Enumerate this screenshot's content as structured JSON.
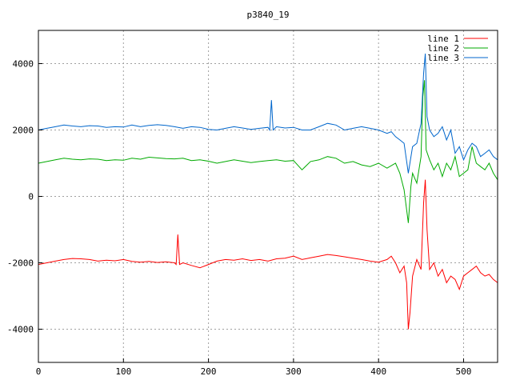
{
  "chart_data": {
    "type": "line",
    "title": "p3840_19",
    "xlabel": "",
    "ylabel": "",
    "xlim": [
      0,
      540
    ],
    "ylim": [
      -5000,
      5000
    ],
    "xticks": [
      0,
      100,
      200,
      300,
      400,
      500
    ],
    "yticks": [
      -4000,
      -2000,
      0,
      2000,
      4000
    ],
    "grid": true,
    "legend_position": "top-right",
    "series": [
      {
        "name": "line 1",
        "color": "#ff0000",
        "points": [
          [
            0,
            -2050
          ],
          [
            10,
            -2000
          ],
          [
            20,
            -1950
          ],
          [
            30,
            -1900
          ],
          [
            40,
            -1870
          ],
          [
            50,
            -1880
          ],
          [
            60,
            -1900
          ],
          [
            70,
            -1950
          ],
          [
            80,
            -1920
          ],
          [
            90,
            -1940
          ],
          [
            100,
            -1900
          ],
          [
            110,
            -1960
          ],
          [
            120,
            -1980
          ],
          [
            130,
            -1960
          ],
          [
            140,
            -1990
          ],
          [
            150,
            -1970
          ],
          [
            160,
            -2000
          ],
          [
            162,
            -2050
          ],
          [
            164,
            -1150
          ],
          [
            166,
            -2050
          ],
          [
            170,
            -2000
          ],
          [
            180,
            -2080
          ],
          [
            190,
            -2150
          ],
          [
            200,
            -2050
          ],
          [
            210,
            -1950
          ],
          [
            220,
            -1900
          ],
          [
            230,
            -1920
          ],
          [
            240,
            -1880
          ],
          [
            250,
            -1930
          ],
          [
            260,
            -1900
          ],
          [
            270,
            -1950
          ],
          [
            280,
            -1880
          ],
          [
            290,
            -1860
          ],
          [
            300,
            -1800
          ],
          [
            310,
            -1900
          ],
          [
            320,
            -1850
          ],
          [
            330,
            -1800
          ],
          [
            340,
            -1750
          ],
          [
            350,
            -1780
          ],
          [
            360,
            -1820
          ],
          [
            370,
            -1860
          ],
          [
            380,
            -1900
          ],
          [
            390,
            -1950
          ],
          [
            400,
            -1980
          ],
          [
            410,
            -1900
          ],
          [
            415,
            -1800
          ],
          [
            420,
            -2000
          ],
          [
            425,
            -2300
          ],
          [
            430,
            -2100
          ],
          [
            433,
            -2600
          ],
          [
            435,
            -4000
          ],
          [
            437,
            -3500
          ],
          [
            440,
            -2400
          ],
          [
            445,
            -1900
          ],
          [
            450,
            -2200
          ],
          [
            453,
            -200
          ],
          [
            455,
            500
          ],
          [
            457,
            -1000
          ],
          [
            460,
            -2200
          ],
          [
            465,
            -2000
          ],
          [
            470,
            -2400
          ],
          [
            475,
            -2200
          ],
          [
            480,
            -2600
          ],
          [
            485,
            -2400
          ],
          [
            490,
            -2500
          ],
          [
            495,
            -2800
          ],
          [
            500,
            -2400
          ],
          [
            505,
            -2300
          ],
          [
            510,
            -2200
          ],
          [
            515,
            -2100
          ],
          [
            520,
            -2300
          ],
          [
            525,
            -2400
          ],
          [
            530,
            -2350
          ],
          [
            535,
            -2500
          ],
          [
            540,
            -2600
          ]
        ]
      },
      {
        "name": "line 2",
        "color": "#00aa00",
        "points": [
          [
            0,
            1000
          ],
          [
            10,
            1050
          ],
          [
            20,
            1100
          ],
          [
            30,
            1150
          ],
          [
            40,
            1120
          ],
          [
            50,
            1100
          ],
          [
            60,
            1130
          ],
          [
            70,
            1120
          ],
          [
            80,
            1080
          ],
          [
            90,
            1100
          ],
          [
            100,
            1090
          ],
          [
            110,
            1150
          ],
          [
            120,
            1120
          ],
          [
            130,
            1180
          ],
          [
            140,
            1160
          ],
          [
            150,
            1140
          ],
          [
            160,
            1130
          ],
          [
            170,
            1150
          ],
          [
            180,
            1080
          ],
          [
            190,
            1100
          ],
          [
            200,
            1060
          ],
          [
            210,
            1000
          ],
          [
            220,
            1050
          ],
          [
            230,
            1100
          ],
          [
            240,
            1060
          ],
          [
            250,
            1020
          ],
          [
            260,
            1050
          ],
          [
            270,
            1080
          ],
          [
            280,
            1100
          ],
          [
            290,
            1060
          ],
          [
            300,
            1080
          ],
          [
            310,
            800
          ],
          [
            320,
            1050
          ],
          [
            330,
            1100
          ],
          [
            340,
            1200
          ],
          [
            350,
            1150
          ],
          [
            360,
            1000
          ],
          [
            370,
            1050
          ],
          [
            380,
            950
          ],
          [
            390,
            900
          ],
          [
            400,
            1000
          ],
          [
            410,
            850
          ],
          [
            420,
            1000
          ],
          [
            425,
            700
          ],
          [
            430,
            200
          ],
          [
            435,
            -800
          ],
          [
            438,
            300
          ],
          [
            440,
            700
          ],
          [
            445,
            400
          ],
          [
            450,
            1200
          ],
          [
            452,
            3000
          ],
          [
            454,
            3500
          ],
          [
            456,
            1400
          ],
          [
            460,
            1100
          ],
          [
            465,
            800
          ],
          [
            470,
            1000
          ],
          [
            475,
            600
          ],
          [
            480,
            1000
          ],
          [
            485,
            800
          ],
          [
            490,
            1200
          ],
          [
            495,
            600
          ],
          [
            500,
            700
          ],
          [
            505,
            800
          ],
          [
            510,
            1500
          ],
          [
            515,
            1000
          ],
          [
            520,
            900
          ],
          [
            525,
            800
          ],
          [
            530,
            1000
          ],
          [
            535,
            700
          ],
          [
            540,
            500
          ]
        ]
      },
      {
        "name": "line 3",
        "color": "#0066cc",
        "points": [
          [
            0,
            2000
          ],
          [
            10,
            2050
          ],
          [
            20,
            2100
          ],
          [
            30,
            2150
          ],
          [
            40,
            2120
          ],
          [
            50,
            2100
          ],
          [
            60,
            2130
          ],
          [
            70,
            2120
          ],
          [
            80,
            2080
          ],
          [
            90,
            2100
          ],
          [
            100,
            2090
          ],
          [
            110,
            2150
          ],
          [
            120,
            2100
          ],
          [
            130,
            2140
          ],
          [
            140,
            2160
          ],
          [
            150,
            2140
          ],
          [
            160,
            2100
          ],
          [
            170,
            2050
          ],
          [
            180,
            2100
          ],
          [
            190,
            2080
          ],
          [
            200,
            2020
          ],
          [
            210,
            2000
          ],
          [
            220,
            2050
          ],
          [
            230,
            2100
          ],
          [
            240,
            2060
          ],
          [
            250,
            2020
          ],
          [
            260,
            2050
          ],
          [
            270,
            2080
          ],
          [
            272,
            2000
          ],
          [
            274,
            2900
          ],
          [
            276,
            2000
          ],
          [
            280,
            2100
          ],
          [
            290,
            2060
          ],
          [
            300,
            2080
          ],
          [
            310,
            2000
          ],
          [
            320,
            2000
          ],
          [
            330,
            2100
          ],
          [
            340,
            2200
          ],
          [
            350,
            2150
          ],
          [
            360,
            2000
          ],
          [
            370,
            2050
          ],
          [
            380,
            2100
          ],
          [
            390,
            2050
          ],
          [
            400,
            2000
          ],
          [
            410,
            1900
          ],
          [
            415,
            1950
          ],
          [
            420,
            1800
          ],
          [
            425,
            1700
          ],
          [
            430,
            1600
          ],
          [
            435,
            700
          ],
          [
            440,
            1500
          ],
          [
            445,
            1600
          ],
          [
            450,
            2200
          ],
          [
            453,
            3700
          ],
          [
            455,
            4300
          ],
          [
            457,
            2400
          ],
          [
            460,
            2000
          ],
          [
            465,
            1800
          ],
          [
            470,
            1900
          ],
          [
            475,
            2100
          ],
          [
            480,
            1700
          ],
          [
            485,
            2000
          ],
          [
            490,
            1300
          ],
          [
            495,
            1500
          ],
          [
            500,
            1100
          ],
          [
            505,
            1400
          ],
          [
            510,
            1600
          ],
          [
            515,
            1500
          ],
          [
            520,
            1200
          ],
          [
            525,
            1300
          ],
          [
            530,
            1400
          ],
          [
            535,
            1200
          ],
          [
            540,
            1100
          ]
        ]
      }
    ]
  }
}
